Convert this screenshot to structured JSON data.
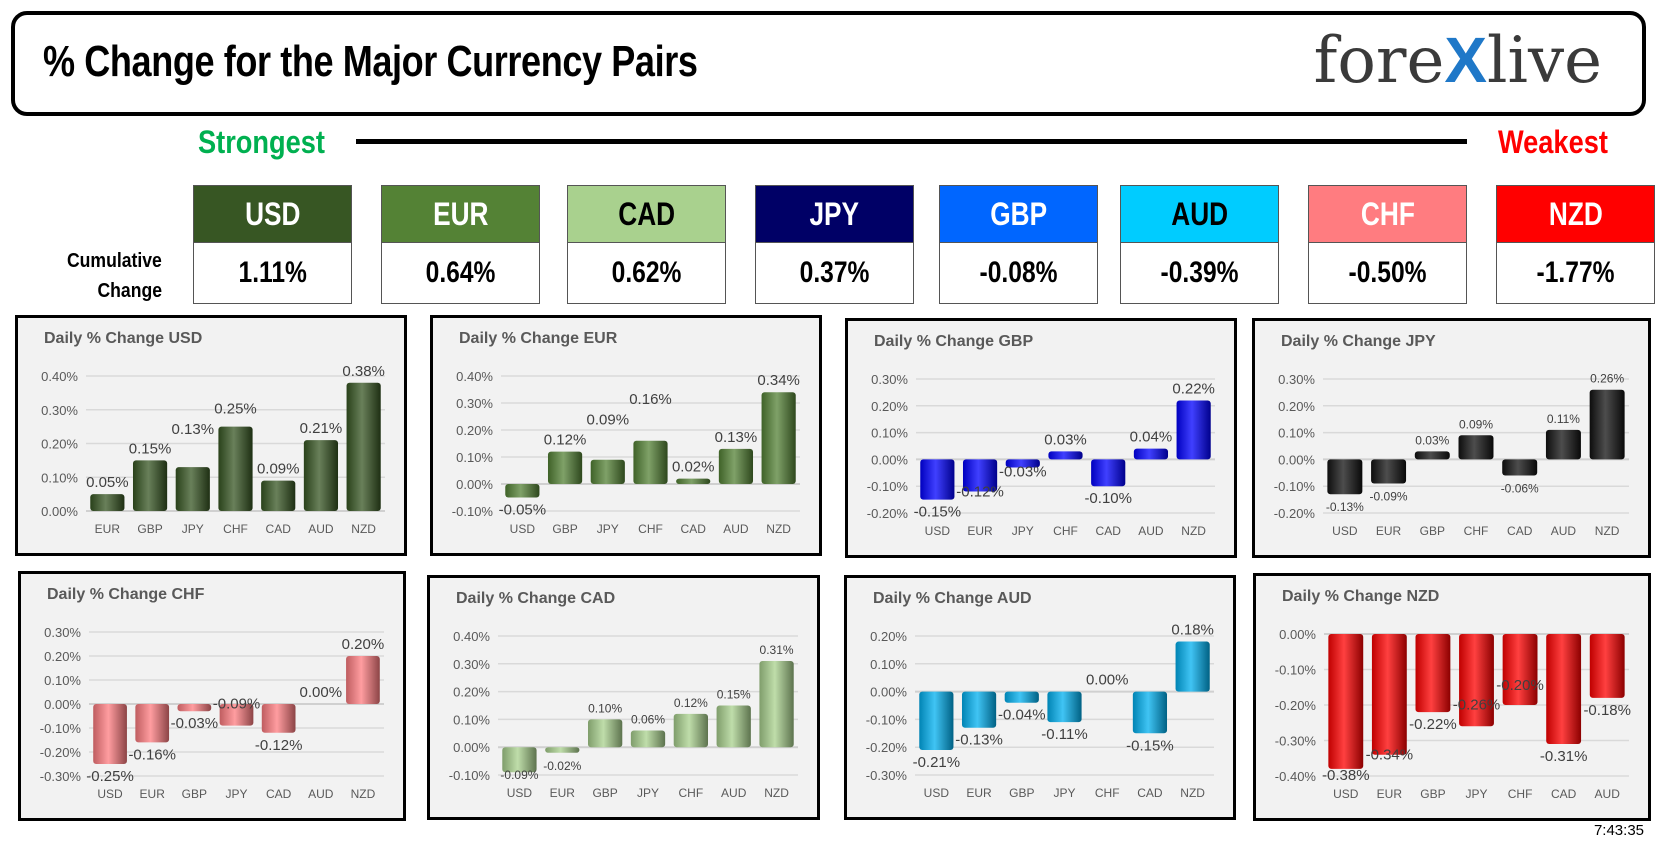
{
  "header": {
    "title": "% Change for the Major Currency Pairs",
    "logo": {
      "left": "fore",
      "x": "X",
      "right": "live"
    }
  },
  "scale": {
    "strongest": "Strongest",
    "weakest": "Weakest"
  },
  "cumulative": {
    "label_line1": "Cumulative",
    "label_line2": "Change",
    "currencies": [
      {
        "code": "USD",
        "value": "1.11%",
        "bg": "#375623",
        "fg": "#ffffff"
      },
      {
        "code": "EUR",
        "value": "0.64%",
        "bg": "#548235",
        "fg": "#ffffff"
      },
      {
        "code": "CAD",
        "value": "0.62%",
        "bg": "#a9d18e",
        "fg": "#000000"
      },
      {
        "code": "JPY",
        "value": "0.37%",
        "bg": "#000066",
        "fg": "#ffffff"
      },
      {
        "code": "GBP",
        "value": "-0.08%",
        "bg": "#0066ff",
        "fg": "#ffffff"
      },
      {
        "code": "AUD",
        "value": "-0.39%",
        "bg": "#00ccff",
        "fg": "#000000"
      },
      {
        "code": "CHF",
        "value": "-0.50%",
        "bg": "#ff7c80",
        "fg": "#ffffff"
      },
      {
        "code": "NZD",
        "value": "-1.77%",
        "bg": "#ff0000",
        "fg": "#ffffff"
      }
    ]
  },
  "chart_data": [
    {
      "type": "bar",
      "title": "Daily % Change USD",
      "color": "#375623",
      "categories": [
        "EUR",
        "GBP",
        "JPY",
        "CHF",
        "CAD",
        "AUD",
        "NZD"
      ],
      "values": [
        0.05,
        0.15,
        0.13,
        0.25,
        0.09,
        0.21,
        0.38
      ],
      "ylim": [
        0,
        0.4
      ],
      "yticks": [
        0,
        0.1,
        0.2,
        0.3,
        0.4
      ],
      "tick_labels": [
        "0.00%",
        "0.10%",
        "0.20%",
        "0.30%",
        "0.40%"
      ]
    },
    {
      "type": "bar",
      "title": "Daily % Change EUR",
      "color": "#548235",
      "categories": [
        "USD",
        "GBP",
        "JPY",
        "CHF",
        "CAD",
        "AUD",
        "NZD"
      ],
      "values": [
        -0.05,
        0.12,
        0.09,
        0.16,
        0.02,
        0.13,
        0.34
      ],
      "ylim": [
        -0.1,
        0.4
      ],
      "yticks": [
        -0.1,
        0,
        0.1,
        0.2,
        0.3,
        0.4
      ],
      "tick_labels": [
        "-0.10%",
        "0.00%",
        "0.10%",
        "0.20%",
        "0.30%",
        "0.40%"
      ]
    },
    {
      "type": "bar",
      "title": "Daily % Change GBP",
      "color": "#0000ff",
      "categories": [
        "USD",
        "EUR",
        "JPY",
        "CHF",
        "CAD",
        "AUD",
        "NZD"
      ],
      "values": [
        -0.15,
        -0.12,
        -0.03,
        0.03,
        -0.1,
        0.04,
        0.22
      ],
      "ylim": [
        -0.2,
        0.3
      ],
      "yticks": [
        -0.2,
        -0.1,
        0,
        0.1,
        0.2,
        0.3
      ],
      "tick_labels": [
        "-0.20%",
        "-0.10%",
        "0.00%",
        "0.10%",
        "0.20%",
        "0.30%"
      ]
    },
    {
      "type": "bar",
      "title": "Daily % Change JPY",
      "color": "#111111",
      "categories": [
        "USD",
        "EUR",
        "GBP",
        "CHF",
        "CAD",
        "AUD",
        "NZD"
      ],
      "values": [
        -0.13,
        -0.09,
        0.03,
        0.09,
        -0.06,
        0.11,
        0.26
      ],
      "ylim": [
        -0.2,
        0.3
      ],
      "yticks": [
        -0.2,
        -0.1,
        0,
        0.1,
        0.2,
        0.3
      ],
      "tick_labels": [
        "-0.20%",
        "-0.10%",
        "0.00%",
        "0.10%",
        "0.20%",
        "0.30%"
      ]
    },
    {
      "type": "bar",
      "title": "Daily % Change CHF",
      "color": "#ff7c80",
      "categories": [
        "USD",
        "EUR",
        "GBP",
        "JPY",
        "CAD",
        "AUD",
        "NZD"
      ],
      "values": [
        -0.25,
        -0.16,
        -0.03,
        -0.09,
        -0.12,
        0.0,
        0.2
      ],
      "ylim": [
        -0.3,
        0.3
      ],
      "yticks": [
        -0.3,
        -0.2,
        -0.1,
        0,
        0.1,
        0.2,
        0.3
      ],
      "tick_labels": [
        "-0.30%",
        "-0.20%",
        "-0.10%",
        "0.00%",
        "0.10%",
        "0.20%",
        "0.30%"
      ]
    },
    {
      "type": "bar",
      "title": "Daily % Change CAD",
      "color": "#a9d18e",
      "categories": [
        "USD",
        "EUR",
        "GBP",
        "JPY",
        "CHF",
        "AUD",
        "NZD"
      ],
      "values": [
        -0.09,
        -0.02,
        0.1,
        0.06,
        0.12,
        0.15,
        0.31
      ],
      "ylim": [
        -0.1,
        0.4
      ],
      "yticks": [
        -0.1,
        0,
        0.1,
        0.2,
        0.3,
        0.4
      ],
      "tick_labels": [
        "-0.10%",
        "0.00%",
        "0.10%",
        "0.20%",
        "0.30%",
        "0.40%"
      ]
    },
    {
      "type": "bar",
      "title": "Daily % Change AUD",
      "color": "#00b0f0",
      "categories": [
        "USD",
        "EUR",
        "GBP",
        "JPY",
        "CHF",
        "CAD",
        "NZD"
      ],
      "values": [
        -0.21,
        -0.13,
        -0.04,
        -0.11,
        0.0,
        -0.15,
        0.18
      ],
      "ylim": [
        -0.3,
        0.2
      ],
      "yticks": [
        -0.3,
        -0.2,
        -0.1,
        0,
        0.1,
        0.2
      ],
      "tick_labels": [
        "-0.30%",
        "-0.20%",
        "-0.10%",
        "0.00%",
        "0.10%",
        "0.20%"
      ]
    },
    {
      "type": "bar",
      "title": "Daily % Change NZD",
      "color": "#ff0000",
      "categories": [
        "USD",
        "EUR",
        "GBP",
        "JPY",
        "CHF",
        "CAD",
        "AUD"
      ],
      "values": [
        -0.38,
        -0.34,
        -0.22,
        -0.26,
        -0.2,
        -0.31,
        -0.18
      ],
      "ylim": [
        -0.4,
        0
      ],
      "yticks": [
        -0.4,
        -0.3,
        -0.2,
        -0.1,
        0
      ],
      "tick_labels": [
        "-0.40%",
        "-0.30%",
        "-0.20%",
        "-0.10%",
        "0.00%"
      ]
    }
  ],
  "timestamp": "7:43:35"
}
